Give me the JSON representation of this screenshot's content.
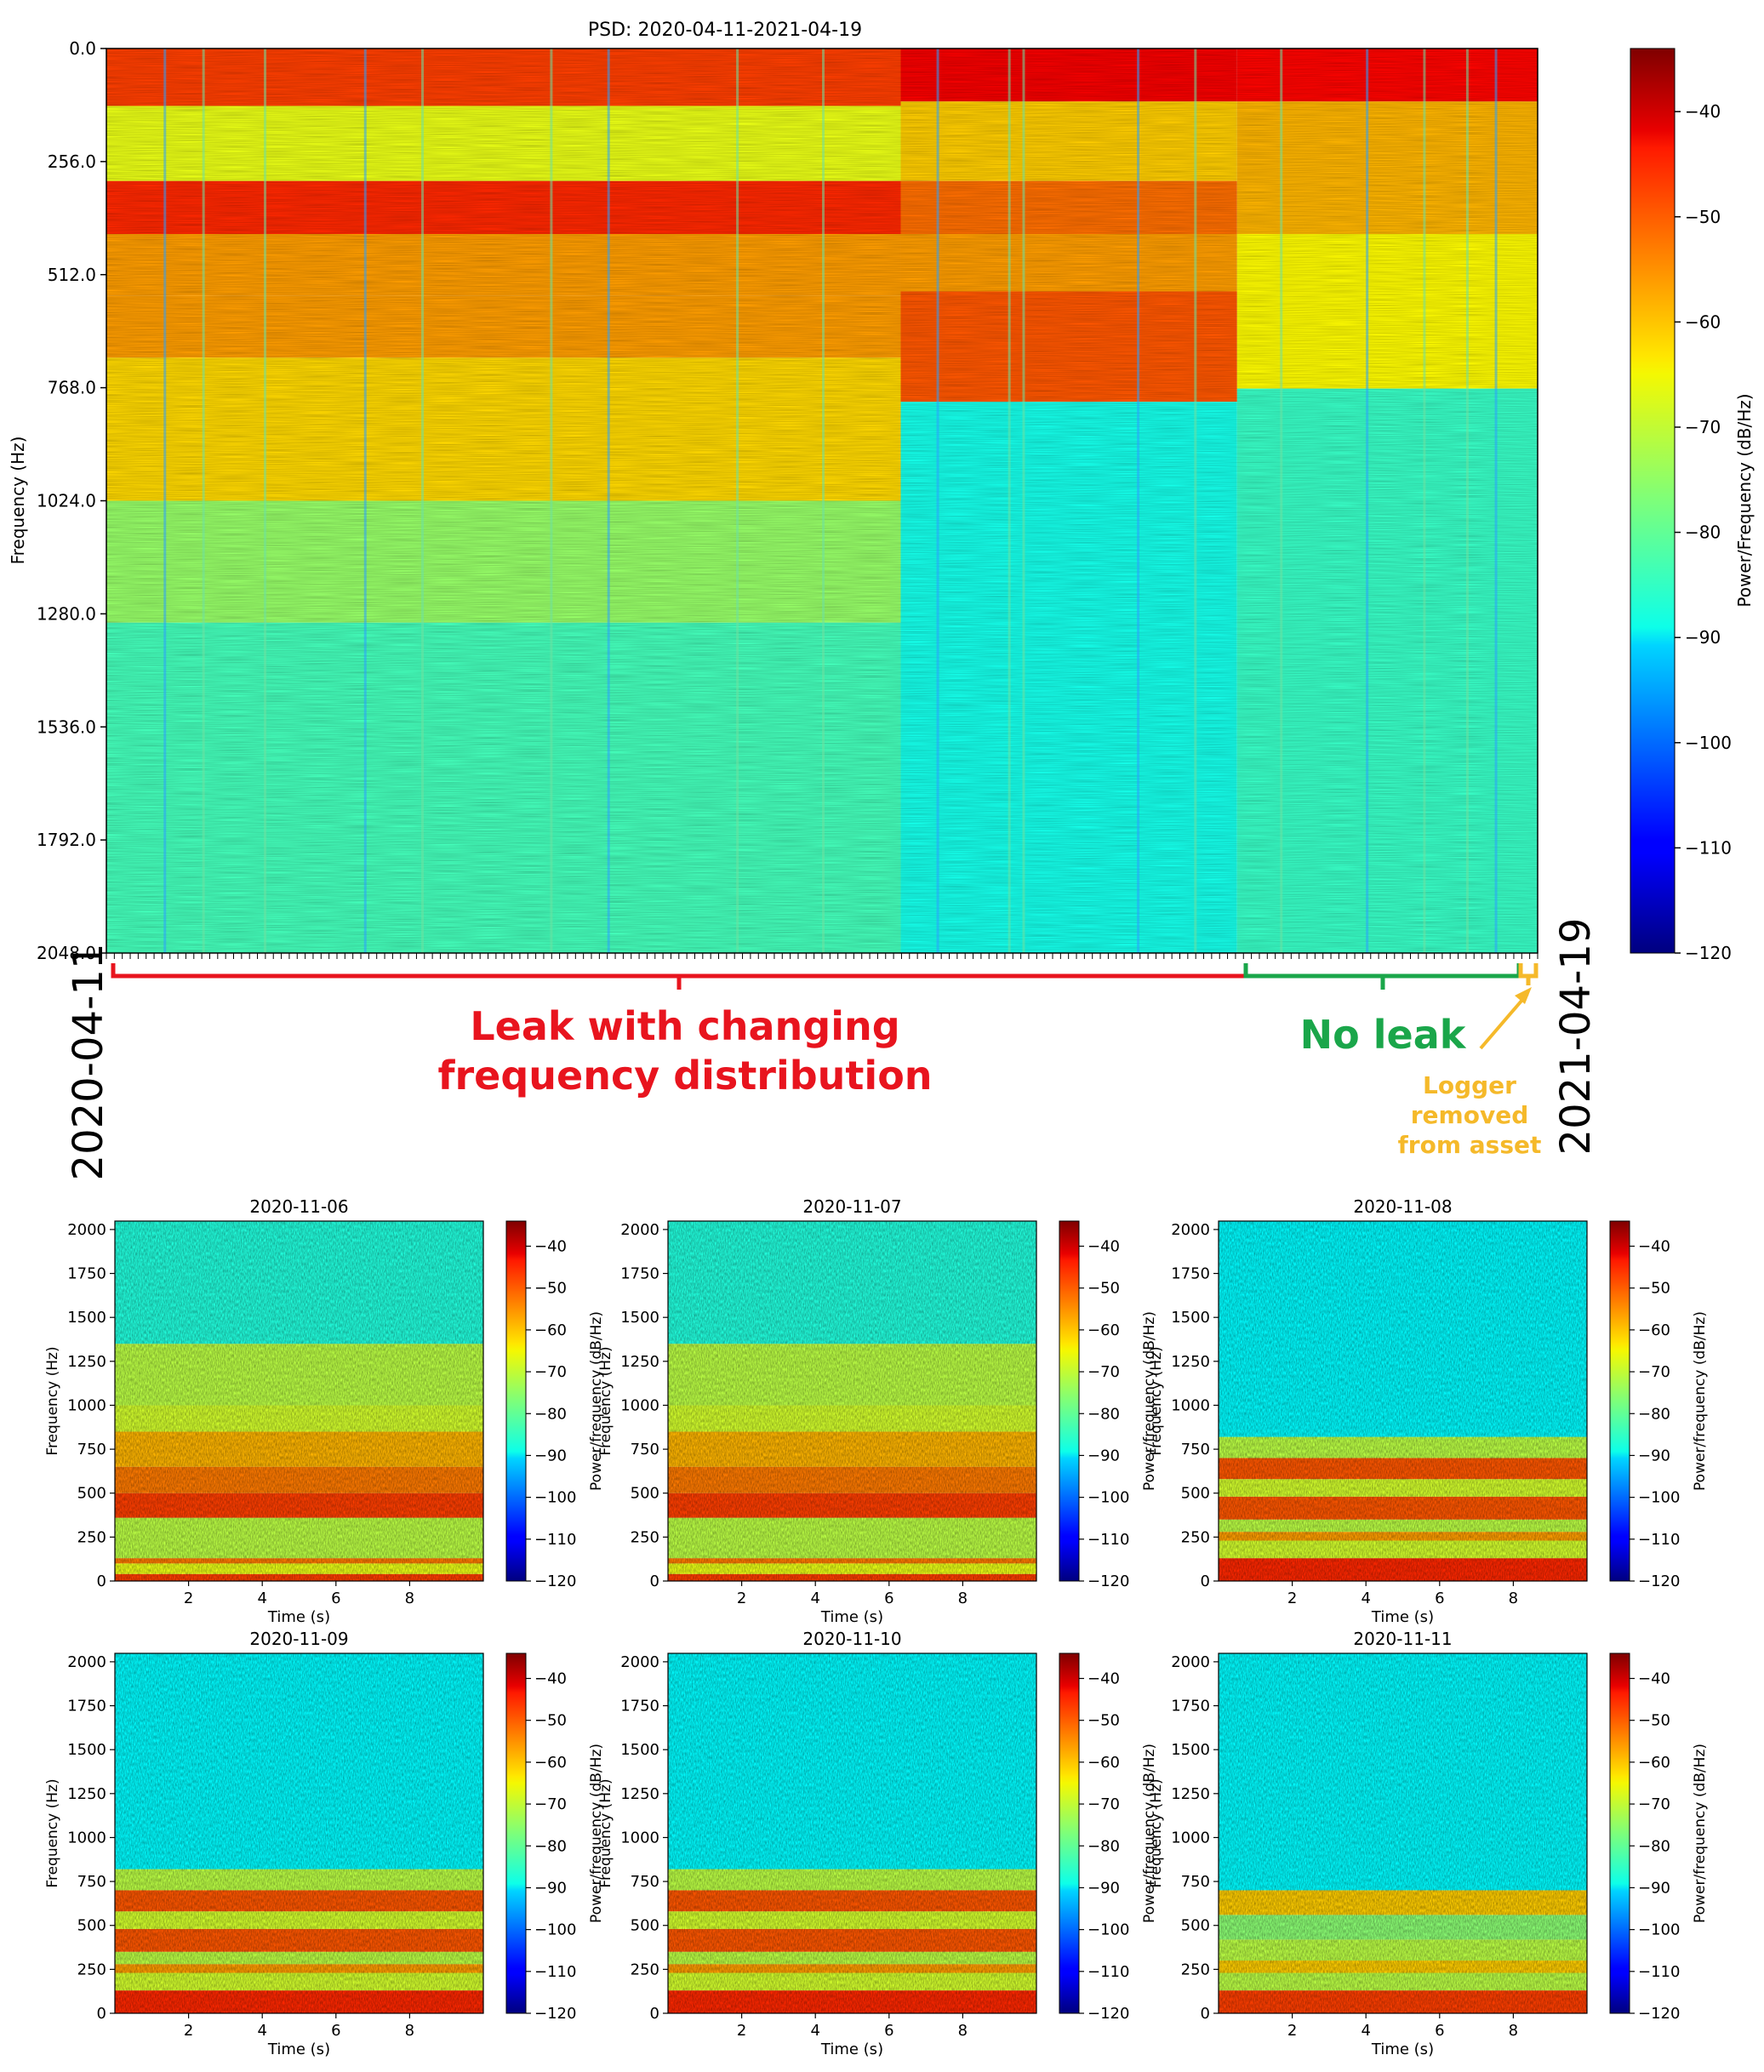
{
  "chart_data": [
    {
      "type": "heatmap",
      "title": "PSD: 2020-04-11-2021-04-19",
      "xlabel": "",
      "ylabel": "Frequency (Hz)",
      "y_ticks": [
        "0.0",
        "256.0",
        "512.0",
        "768.0",
        "1024.0",
        "1280.0",
        "1536.0",
        "1792.0",
        "2048.0"
      ],
      "ylim": [
        2048,
        0
      ],
      "x_range_dates": [
        "2020-04-11",
        "2021-04-19"
      ],
      "colorbar": {
        "label": "Power/Frequency (dB/Hz)",
        "ticks": [
          "−40",
          "−50",
          "−60",
          "−70",
          "−80",
          "−90",
          "−100",
          "−110",
          "−120"
        ],
        "range": [
          -120,
          -34
        ]
      },
      "annotations": {
        "leak_line1": "Leak with changing",
        "leak_line2": "frequency distribution",
        "no_leak": "No leak",
        "logger_line1": "Logger",
        "logger_line2": "removed",
        "logger_line3": "from asset",
        "date_start": "2020-04-11",
        "date_end": "2021-04-19"
      },
      "colors": {
        "leak": "#e8141e",
        "no_leak": "#1aa64a",
        "logger": "#f5b92a"
      },
      "frequency_bands": [
        {
          "from_frac": 0.0,
          "to_frac": 0.555,
          "description": "leak period",
          "bands": [
            [
              0,
              130,
              -50
            ],
            [
              130,
              300,
              -68
            ],
            [
              300,
              420,
              -48
            ],
            [
              420,
              560,
              -58
            ],
            [
              560,
              700,
              -58
            ],
            [
              700,
              1024,
              -63
            ],
            [
              1024,
              1300,
              -75
            ],
            [
              1300,
              2048,
              -82
            ]
          ]
        },
        {
          "from_frac": 0.555,
          "to_frac": 0.79,
          "description": "leak, shifted distribution",
          "bands": [
            [
              0,
              120,
              -44
            ],
            [
              120,
              300,
              -62
            ],
            [
              300,
              420,
              -54
            ],
            [
              420,
              550,
              -58
            ],
            [
              550,
              800,
              -52
            ],
            [
              800,
              2048,
              -86
            ]
          ]
        },
        {
          "from_frac": 0.79,
          "to_frac": 1.0,
          "description": "no leak",
          "bands": [
            [
              0,
              120,
              -45
            ],
            [
              120,
              420,
              -60
            ],
            [
              420,
              770,
              -66
            ],
            [
              770,
              2048,
              -83
            ]
          ]
        }
      ]
    },
    {
      "type": "heatmap",
      "title": "2020-11-06",
      "xlabel": "Time (s)",
      "ylabel": "Frequency (Hz)",
      "x_ticks": [
        "2",
        "4",
        "6",
        "8"
      ],
      "y_ticks": [
        "0",
        "250",
        "500",
        "750",
        "1000",
        "1250",
        "1500",
        "1750",
        "2000"
      ],
      "xlim": [
        0,
        10
      ],
      "ylim": [
        0,
        2048
      ],
      "colorbar_label": "Power/frequency (dB/Hz)",
      "colorbar_ticks": [
        "−40",
        "−50",
        "−60",
        "−70",
        "−80",
        "−90",
        "−100",
        "−110",
        "−120"
      ],
      "bands": [
        [
          0,
          40,
          -50
        ],
        [
          40,
          100,
          -68
        ],
        [
          100,
          130,
          -55
        ],
        [
          130,
          360,
          -72
        ],
        [
          360,
          500,
          -50
        ],
        [
          500,
          650,
          -55
        ],
        [
          650,
          850,
          -60
        ],
        [
          850,
          1000,
          -70
        ],
        [
          1000,
          1350,
          -72
        ],
        [
          1350,
          2048,
          -85
        ]
      ]
    },
    {
      "type": "heatmap",
      "title": "2020-11-07",
      "xlabel": "Time (s)",
      "ylabel": "Frequency (Hz)",
      "x_ticks": [
        "2",
        "4",
        "6",
        "8"
      ],
      "y_ticks": [
        "0",
        "250",
        "500",
        "750",
        "1000",
        "1250",
        "1500",
        "1750",
        "2000"
      ],
      "xlim": [
        0,
        10
      ],
      "ylim": [
        0,
        2048
      ],
      "colorbar_label": "Power/frequency (dB/Hz)",
      "colorbar_ticks": [
        "−40",
        "−50",
        "−60",
        "−70",
        "−80",
        "−90",
        "−100",
        "−110",
        "−120"
      ],
      "bands": [
        [
          0,
          40,
          -50
        ],
        [
          40,
          100,
          -68
        ],
        [
          100,
          130,
          -55
        ],
        [
          130,
          360,
          -72
        ],
        [
          360,
          500,
          -50
        ],
        [
          500,
          650,
          -55
        ],
        [
          650,
          850,
          -60
        ],
        [
          850,
          1000,
          -70
        ],
        [
          1000,
          1350,
          -72
        ],
        [
          1350,
          2048,
          -85
        ]
      ]
    },
    {
      "type": "heatmap",
      "title": "2020-11-08",
      "xlabel": "Time (s)",
      "ylabel": "Frequency (Hz)",
      "x_ticks": [
        "2",
        "4",
        "6",
        "8"
      ],
      "y_ticks": [
        "0",
        "250",
        "500",
        "750",
        "1000",
        "1250",
        "1500",
        "1750",
        "2000"
      ],
      "xlim": [
        0,
        10
      ],
      "ylim": [
        0,
        2048
      ],
      "colorbar_label": "Power/frequency (dB/Hz)",
      "colorbar_ticks": [
        "−40",
        "−50",
        "−60",
        "−70",
        "−80",
        "−90",
        "−100",
        "−110",
        "−120"
      ],
      "bands": [
        [
          0,
          130,
          -48
        ],
        [
          130,
          230,
          -70
        ],
        [
          230,
          280,
          -58
        ],
        [
          280,
          350,
          -72
        ],
        [
          350,
          480,
          -52
        ],
        [
          480,
          580,
          -70
        ],
        [
          580,
          700,
          -52
        ],
        [
          700,
          820,
          -72
        ],
        [
          820,
          2048,
          -88
        ]
      ]
    },
    {
      "type": "heatmap",
      "title": "2020-11-09",
      "xlabel": "Time (s)",
      "ylabel": "Frequency (Hz)",
      "x_ticks": [
        "2",
        "4",
        "6",
        "8"
      ],
      "y_ticks": [
        "0",
        "250",
        "500",
        "750",
        "1000",
        "1250",
        "1500",
        "1750",
        "2000"
      ],
      "xlim": [
        0,
        10
      ],
      "ylim": [
        0,
        2048
      ],
      "colorbar_label": "Power/frequency (dB/Hz)",
      "colorbar_ticks": [
        "−40",
        "−50",
        "−60",
        "−70",
        "−80",
        "−90",
        "−100",
        "−110",
        "−120"
      ],
      "bands": [
        [
          0,
          130,
          -48
        ],
        [
          130,
          230,
          -70
        ],
        [
          230,
          280,
          -58
        ],
        [
          280,
          350,
          -72
        ],
        [
          350,
          480,
          -52
        ],
        [
          480,
          580,
          -70
        ],
        [
          580,
          700,
          -52
        ],
        [
          700,
          820,
          -72
        ],
        [
          820,
          2048,
          -88
        ]
      ]
    },
    {
      "type": "heatmap",
      "title": "2020-11-10",
      "xlabel": "Time (s)",
      "ylabel": "Frequency (Hz)",
      "x_ticks": [
        "2",
        "4",
        "6",
        "8"
      ],
      "y_ticks": [
        "0",
        "250",
        "500",
        "750",
        "1000",
        "1250",
        "1500",
        "1750",
        "2000"
      ],
      "xlim": [
        0,
        10
      ],
      "ylim": [
        0,
        2048
      ],
      "colorbar_label": "Power/frequency (dB/Hz)",
      "colorbar_ticks": [
        "−40",
        "−50",
        "−60",
        "−70",
        "−80",
        "−90",
        "−100",
        "−110",
        "−120"
      ],
      "bands": [
        [
          0,
          130,
          -48
        ],
        [
          130,
          230,
          -70
        ],
        [
          230,
          280,
          -58
        ],
        [
          280,
          350,
          -72
        ],
        [
          350,
          480,
          -52
        ],
        [
          480,
          580,
          -70
        ],
        [
          580,
          700,
          -52
        ],
        [
          700,
          820,
          -72
        ],
        [
          820,
          2048,
          -88
        ]
      ]
    },
    {
      "type": "heatmap",
      "title": "2020-11-11",
      "xlabel": "Time (s)",
      "ylabel": "Frequency (Hz)",
      "x_ticks": [
        "2",
        "4",
        "6",
        "8"
      ],
      "y_ticks": [
        "0",
        "250",
        "500",
        "750",
        "1000",
        "1250",
        "1500",
        "1750",
        "2000"
      ],
      "xlim": [
        0,
        10
      ],
      "ylim": [
        0,
        2048
      ],
      "colorbar_label": "Power/frequency (dB/Hz)",
      "colorbar_ticks": [
        "−40",
        "−50",
        "−60",
        "−70",
        "−80",
        "−90",
        "−100",
        "−110",
        "−120"
      ],
      "bands": [
        [
          0,
          130,
          -50
        ],
        [
          130,
          230,
          -72
        ],
        [
          230,
          300,
          -62
        ],
        [
          300,
          420,
          -72
        ],
        [
          420,
          560,
          -76
        ],
        [
          560,
          700,
          -62
        ],
        [
          700,
          2048,
          -88
        ]
      ]
    }
  ]
}
